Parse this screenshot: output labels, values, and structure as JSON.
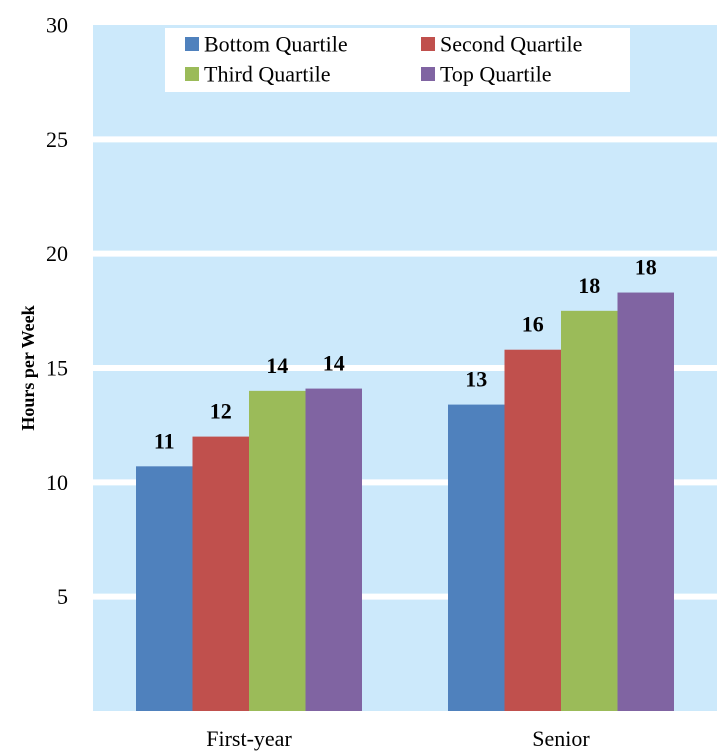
{
  "chart_data": {
    "type": "bar",
    "title": "",
    "xlabel": "",
    "ylabel": "Hours per Week",
    "ylim": [
      0,
      30
    ],
    "yticks": [
      5,
      10,
      15,
      20,
      25,
      30
    ],
    "grid": true,
    "legend_position": "top",
    "categories": [
      "First-year",
      "Senior"
    ],
    "series": [
      {
        "name": "Bottom Quartile",
        "color": "#4f81bd",
        "values": [
          10.7,
          13.4
        ],
        "labels": [
          "11",
          "13"
        ]
      },
      {
        "name": "Second Quartile",
        "color": "#c0504d",
        "values": [
          12.0,
          15.8
        ],
        "labels": [
          "12",
          "16"
        ]
      },
      {
        "name": "Third Quartile",
        "color": "#9bbb59",
        "values": [
          14.0,
          17.5
        ],
        "labels": [
          "14",
          "18"
        ]
      },
      {
        "name": "Top Quartile",
        "color": "#8064a2",
        "values": [
          14.1,
          18.3
        ],
        "labels": [
          "14",
          "18"
        ]
      }
    ],
    "plot_background": "#cce9fb",
    "grid_color": "#ffffff"
  }
}
